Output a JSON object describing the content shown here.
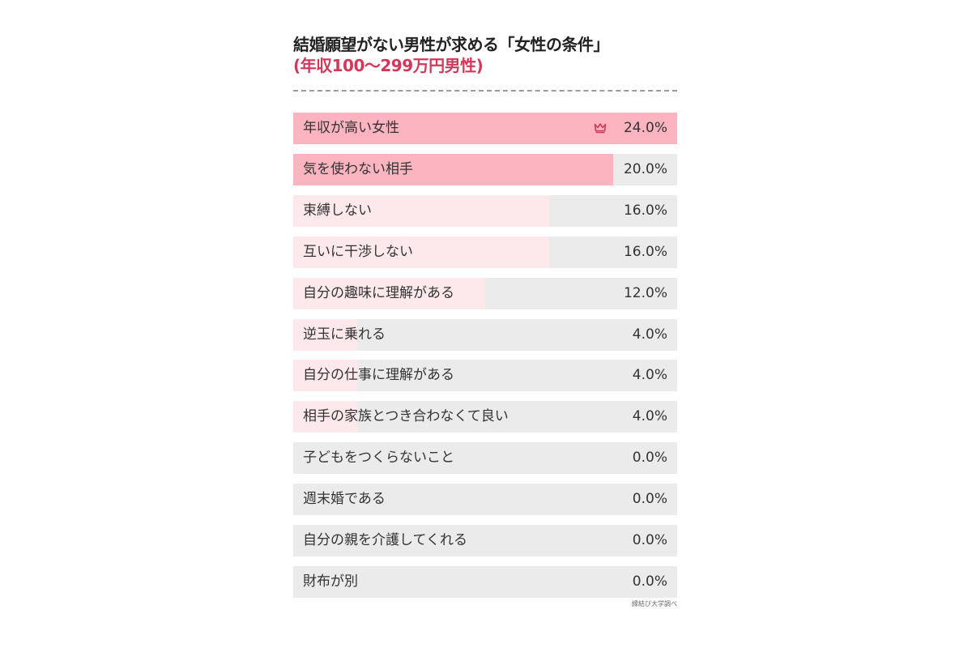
{
  "title_line1": "結婚願望がない男性が求める「女性の条件」",
  "title_line2": "(年収100〜299万円男性)",
  "source": "縁結び大学調べ",
  "colors": {
    "top_fill": "#fcb4c0",
    "light_fill": "#fde9ec",
    "track": "#ebebeb",
    "accent": "#d2385a"
  },
  "icons": {
    "top_marker": "crown-icon"
  },
  "chart_data": {
    "type": "bar",
    "orientation": "horizontal",
    "title": "結婚願望がない男性が求める「女性の条件」",
    "subtitle": "(年収100〜299万円男性)",
    "unit": "%",
    "xlim": [
      0,
      24
    ],
    "categories": [
      "年収が高い女性",
      "気を使わない相手",
      "束縛しない",
      "互いに干渉しない",
      "自分の趣味に理解がある",
      "逆玉に乗れる",
      "自分の仕事に理解がある",
      "相手の家族とつき合わなくて良い",
      "子どもをつくらないこと",
      "週末婚である",
      "自分の親を介護してくれる",
      "財布が別"
    ],
    "values": [
      24.0,
      20.0,
      16.0,
      16.0,
      12.0,
      4.0,
      4.0,
      4.0,
      0.0,
      0.0,
      0.0,
      0.0
    ],
    "value_labels": [
      "24.0%",
      "20.0%",
      "16.0%",
      "16.0%",
      "12.0%",
      "4.0%",
      "4.0%",
      "4.0%",
      "0.0%",
      "0.0%",
      "0.0%",
      "0.0%"
    ],
    "highlight_top": 2
  }
}
